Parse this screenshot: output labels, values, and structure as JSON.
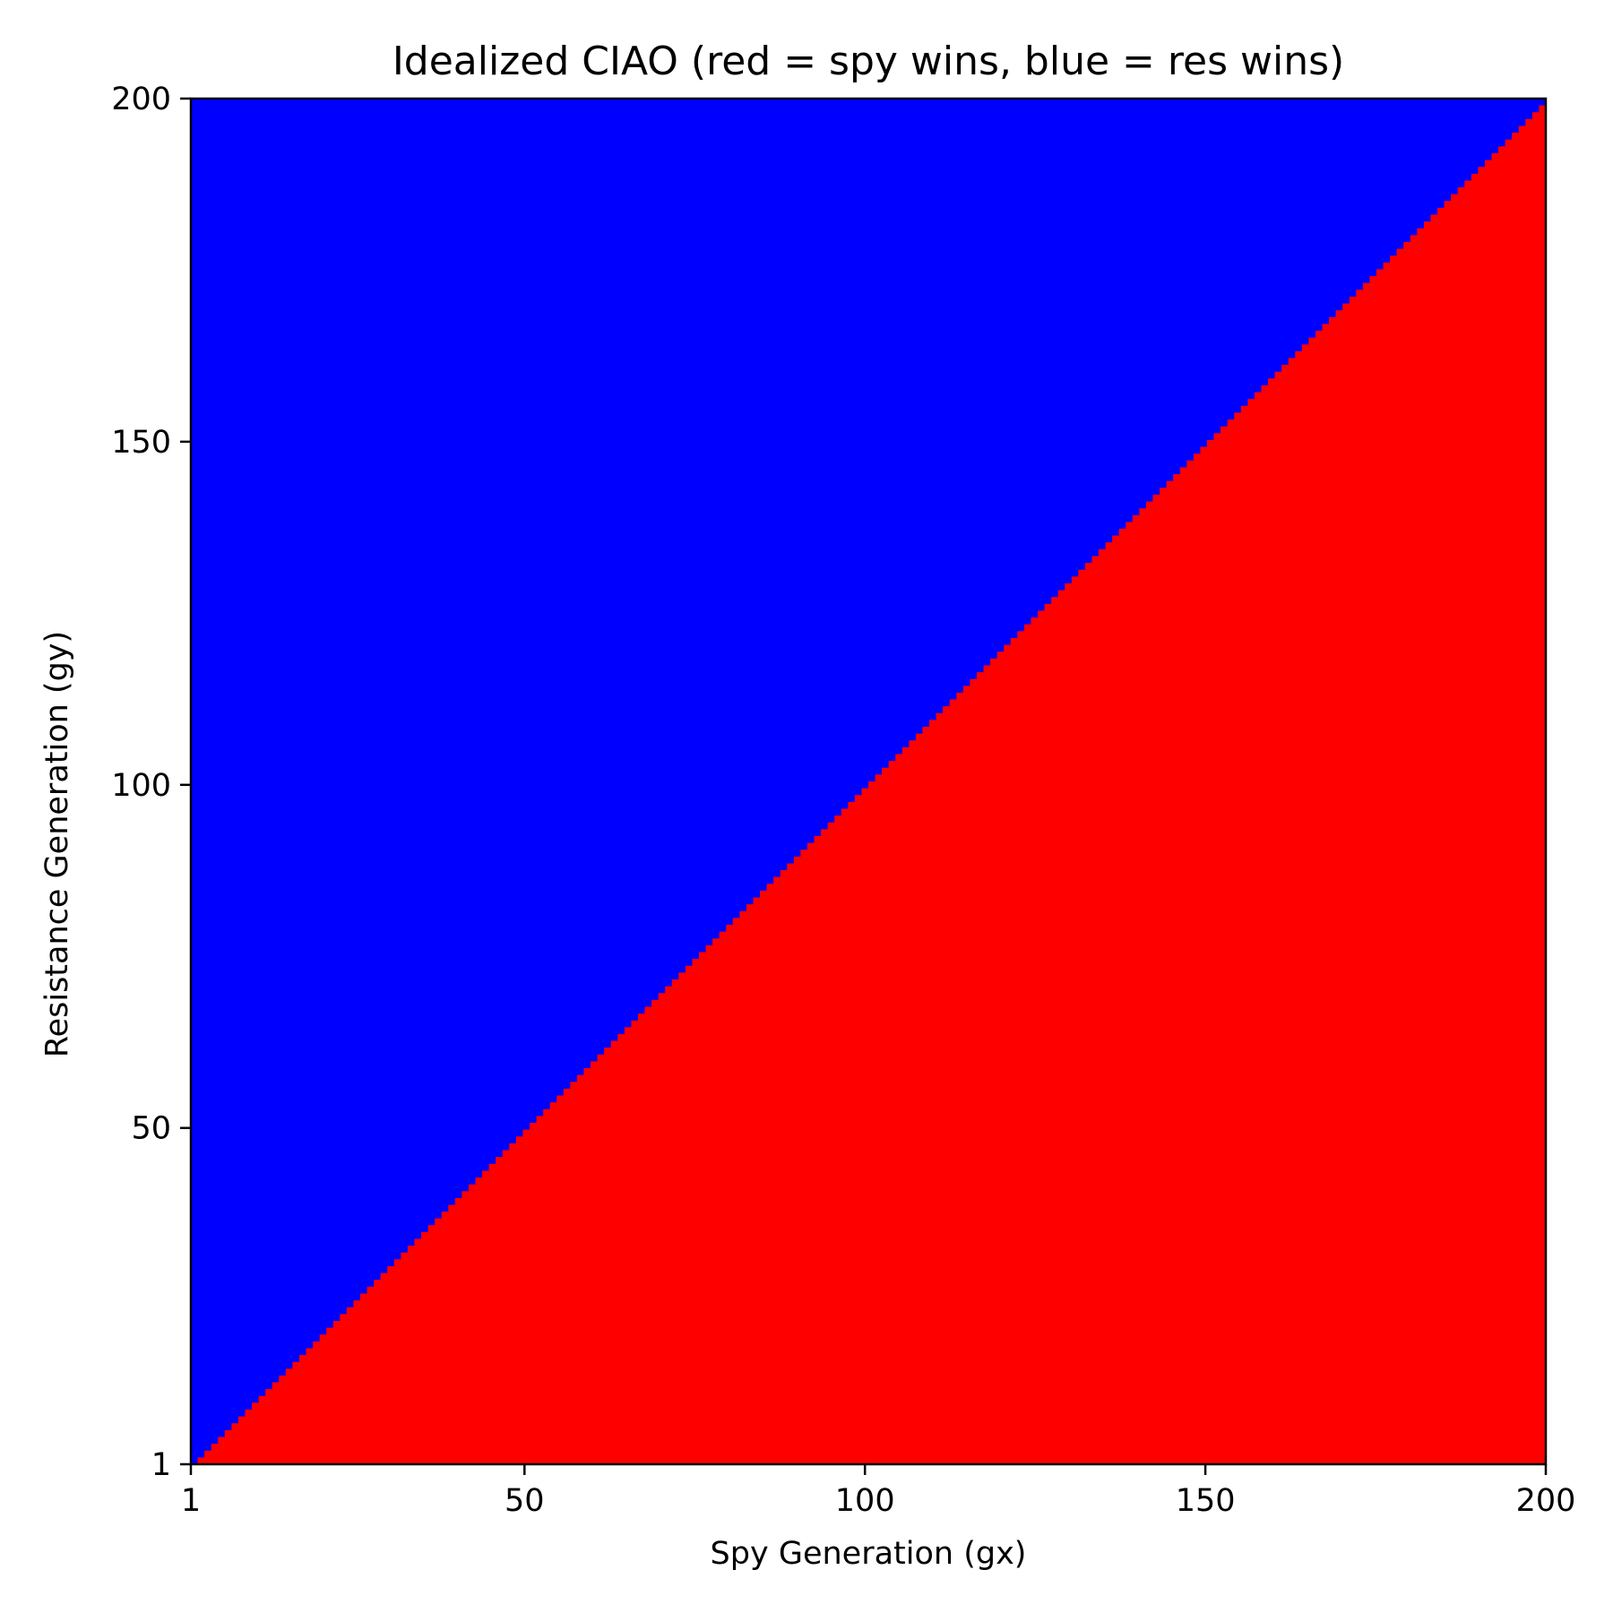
{
  "chart_data": {
    "type": "heatmap",
    "title": "Idealized CIAO (red = spy wins, blue = res wins)",
    "xlabel": "Spy Generation (gx)",
    "ylabel": "Resistance Generation (gy)",
    "xlim": [
      1,
      200
    ],
    "ylim": [
      1,
      200
    ],
    "xticks": [
      1,
      50,
      100,
      150,
      200
    ],
    "yticks": [
      1,
      50,
      100,
      150,
      200
    ],
    "grid": false,
    "rule": "cell(gx, gy) = red (spy wins) when gx > gy, otherwise blue (res wins)",
    "regions": [
      {
        "name": "spy wins",
        "color": "#ff0000",
        "condition": "gx > gy"
      },
      {
        "name": "res wins",
        "color": "#0000ff",
        "condition": "gx <= gy"
      }
    ]
  }
}
